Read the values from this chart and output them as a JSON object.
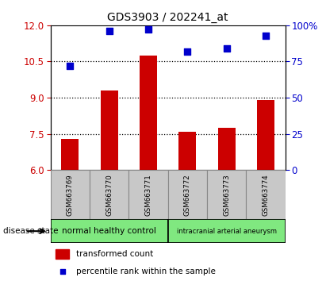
{
  "title": "GDS3903 / 202241_at",
  "samples": [
    "GSM663769",
    "GSM663770",
    "GSM663771",
    "GSM663772",
    "GSM663773",
    "GSM663774"
  ],
  "bar_values": [
    7.3,
    9.3,
    10.75,
    7.6,
    7.75,
    8.9
  ],
  "scatter_values": [
    72,
    96,
    97,
    82,
    84,
    93
  ],
  "ylim_left": [
    6,
    12
  ],
  "ylim_right": [
    0,
    100
  ],
  "yticks_left": [
    6,
    7.5,
    9,
    10.5,
    12
  ],
  "yticks_right": [
    0,
    25,
    50,
    75,
    100
  ],
  "bar_color": "#CC0000",
  "scatter_color": "#0000CC",
  "scatter_size": 30,
  "group1_label": "normal healthy control",
  "group2_label": "intracranial arterial aneurysm",
  "group1_color": "#80E880",
  "group2_color": "#80E880",
  "disease_state_label": "disease state",
  "legend_bar_label": "transformed count",
  "legend_scatter_label": "percentile rank within the sample",
  "title_fontsize": 10,
  "tick_color_left": "#CC0000",
  "tick_color_right": "#0000CC",
  "bar_bottom": 6,
  "sample_box_color": "#C8C8C8",
  "sample_box_edge": "#888888",
  "bg_color": "#FFFFFF"
}
